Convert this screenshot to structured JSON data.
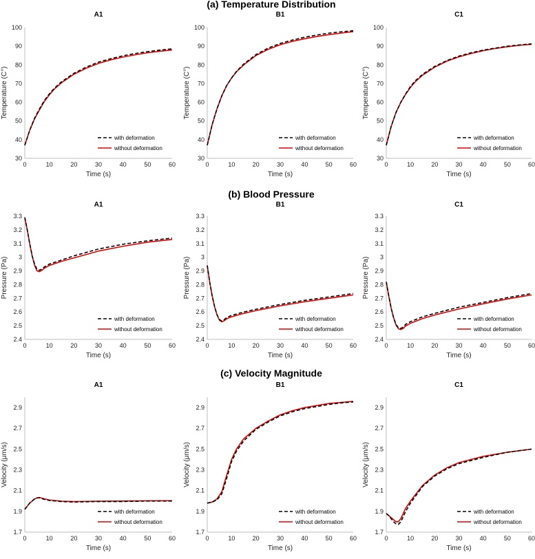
{
  "figure": {
    "sections": [
      {
        "title": "(a) Temperature Distribution"
      },
      {
        "title": "(b) Blood Pressure"
      },
      {
        "title": "(c) Velocity Magnitude"
      }
    ],
    "legend": {
      "dashed": "with deformation",
      "solid": "without deformation"
    },
    "colors": {
      "dashed": "#000000",
      "solid": "#e00000"
    }
  },
  "chart_data": [
    {
      "type": "line",
      "row": 0,
      "col": 0,
      "title": "A1",
      "xlabel": "Time (s)",
      "ylabel": "Temperature (C°)",
      "xlim": [
        0,
        60
      ],
      "ylim": [
        30,
        100
      ],
      "yticks": [
        30,
        40,
        50,
        60,
        70,
        80,
        90,
        100
      ],
      "ytick_labels": [
        "30",
        "40",
        "50",
        "60",
        "70",
        "80",
        "90",
        "100"
      ],
      "xticks": [
        0,
        10,
        20,
        30,
        40,
        50,
        60
      ],
      "series": [
        {
          "name": "with deformation",
          "style": "dashed",
          "x": [
            0,
            2,
            4,
            6,
            8,
            10,
            12,
            15,
            20,
            25,
            30,
            35,
            40,
            45,
            50,
            55,
            60
          ],
          "y": [
            37,
            45,
            51.5,
            56.5,
            61,
            64.5,
            67.5,
            71,
            75.5,
            78.8,
            81.5,
            83.3,
            84.9,
            86.1,
            87.1,
            87.9,
            88.6
          ]
        },
        {
          "name": "without deformation",
          "style": "solid",
          "x": [
            0,
            2,
            4,
            6,
            8,
            10,
            12,
            15,
            20,
            25,
            30,
            35,
            40,
            45,
            50,
            55,
            60
          ],
          "y": [
            37,
            45,
            51.2,
            56,
            60.5,
            64,
            67,
            70.5,
            75,
            78.2,
            80.8,
            82.7,
            84.2,
            85.4,
            86.5,
            87.3,
            88
          ]
        }
      ]
    },
    {
      "type": "line",
      "row": 0,
      "col": 1,
      "title": "B1",
      "xlabel": "Time (s)",
      "ylabel": "Temperature (C°)",
      "xlim": [
        0,
        60
      ],
      "ylim": [
        30,
        100
      ],
      "yticks": [
        30,
        40,
        50,
        60,
        70,
        80,
        90,
        100
      ],
      "ytick_labels": [
        "30",
        "40",
        "50",
        "60",
        "70",
        "80",
        "90",
        "100"
      ],
      "xticks": [
        0,
        10,
        20,
        30,
        40,
        50,
        60
      ],
      "series": [
        {
          "name": "with deformation",
          "style": "dashed",
          "x": [
            0,
            2,
            4,
            6,
            8,
            10,
            12,
            15,
            20,
            25,
            30,
            35,
            40,
            45,
            50,
            55,
            60
          ],
          "y": [
            37,
            48,
            56.5,
            63.5,
            69,
            73,
            76.5,
            80.5,
            85.5,
            89,
            91.5,
            93.3,
            94.8,
            96,
            97,
            97.7,
            98.3
          ]
        },
        {
          "name": "without deformation",
          "style": "solid",
          "x": [
            0,
            2,
            4,
            6,
            8,
            10,
            12,
            15,
            20,
            25,
            30,
            35,
            40,
            45,
            50,
            55,
            60
          ],
          "y": [
            37,
            48,
            56.5,
            63.5,
            69,
            73,
            76.3,
            80,
            85,
            88.3,
            90.8,
            92.6,
            94,
            95.2,
            96.2,
            97,
            97.8
          ]
        }
      ]
    },
    {
      "type": "line",
      "row": 0,
      "col": 2,
      "title": "C1",
      "xlabel": "Time (s)",
      "ylabel": "Temperature (C°)",
      "xlim": [
        0,
        60
      ],
      "ylim": [
        30,
        100
      ],
      "yticks": [
        30,
        40,
        50,
        60,
        70,
        80,
        90,
        100
      ],
      "ytick_labels": [
        "30",
        "40",
        "50",
        "60",
        "70",
        "80",
        "90",
        "100"
      ],
      "xticks": [
        0,
        10,
        20,
        30,
        40,
        50,
        60
      ],
      "series": [
        {
          "name": "with deformation",
          "style": "dashed",
          "x": [
            0,
            2,
            4,
            6,
            8,
            10,
            12,
            15,
            20,
            25,
            30,
            35,
            40,
            45,
            50,
            55,
            60
          ],
          "y": [
            37,
            47,
            54.5,
            60,
            64.5,
            68.5,
            71.5,
            75,
            79.2,
            82.3,
            84.7,
            86.5,
            87.9,
            89,
            90,
            90.7,
            91.3
          ]
        },
        {
          "name": "without deformation",
          "style": "solid",
          "x": [
            0,
            2,
            4,
            6,
            8,
            10,
            12,
            15,
            20,
            25,
            30,
            35,
            40,
            45,
            50,
            55,
            60
          ],
          "y": [
            37,
            47,
            54.5,
            60,
            64.3,
            68,
            71,
            74.5,
            78.8,
            82,
            84.3,
            86.1,
            87.6,
            88.8,
            89.7,
            90.5,
            91
          ]
        }
      ]
    },
    {
      "type": "line",
      "row": 1,
      "col": 0,
      "title": "A1",
      "xlabel": "Time (s)",
      "ylabel": "Pressure (Pa)",
      "xlim": [
        0,
        60
      ],
      "ylim": [
        2.4,
        3.3
      ],
      "yticks": [
        2.4,
        2.5,
        2.6,
        2.7,
        2.8,
        2.9,
        3.0,
        3.1,
        3.2,
        3.3
      ],
      "ytick_labels": [
        "2.4",
        "2.5",
        "2.6",
        "2.7",
        "2.8",
        "2.9",
        "3",
        "3.1",
        "3.2",
        "3.3"
      ],
      "xticks": [
        0,
        10,
        20,
        30,
        40,
        50,
        60
      ],
      "series": [
        {
          "name": "with deformation",
          "style": "dashed",
          "x": [
            0,
            1,
            2,
            3,
            4,
            5,
            6,
            7,
            8,
            10,
            15,
            20,
            30,
            40,
            50,
            60
          ],
          "y": [
            3.29,
            3.2,
            3.1,
            3.01,
            2.95,
            2.91,
            2.905,
            2.915,
            2.93,
            2.95,
            2.98,
            3.01,
            3.06,
            3.095,
            3.12,
            3.14
          ]
        },
        {
          "name": "without deformation",
          "style": "solid",
          "x": [
            0,
            1,
            2,
            3,
            4,
            5,
            6,
            7,
            8,
            10,
            15,
            20,
            30,
            40,
            50,
            60
          ],
          "y": [
            3.29,
            3.2,
            3.1,
            3.01,
            2.94,
            2.9,
            2.895,
            2.905,
            2.92,
            2.94,
            2.97,
            2.995,
            3.045,
            3.08,
            3.11,
            3.13
          ]
        }
      ]
    },
    {
      "type": "line",
      "row": 1,
      "col": 1,
      "title": "B1",
      "xlabel": "Time (s)",
      "ylabel": "Pressure (Pa)",
      "xlim": [
        0,
        60
      ],
      "ylim": [
        2.4,
        3.3
      ],
      "yticks": [
        2.4,
        2.5,
        2.6,
        2.7,
        2.8,
        2.9,
        3.0,
        3.1,
        3.2,
        3.3
      ],
      "ytick_labels": [
        "2.4",
        "2.5",
        "2.6",
        "2.7",
        "2.8",
        "2.9",
        "3",
        "3.1",
        "3.2",
        "3.3"
      ],
      "xticks": [
        0,
        10,
        20,
        30,
        40,
        50,
        60
      ],
      "series": [
        {
          "name": "with deformation",
          "style": "dashed",
          "x": [
            0,
            1,
            2,
            3,
            4,
            5,
            6,
            7,
            8,
            10,
            15,
            20,
            30,
            40,
            50,
            60
          ],
          "y": [
            2.94,
            2.82,
            2.72,
            2.64,
            2.58,
            2.545,
            2.535,
            2.545,
            2.56,
            2.575,
            2.6,
            2.62,
            2.655,
            2.685,
            2.71,
            2.735
          ]
        },
        {
          "name": "without deformation",
          "style": "solid",
          "x": [
            0,
            1,
            2,
            3,
            4,
            5,
            6,
            7,
            8,
            10,
            15,
            20,
            30,
            40,
            50,
            60
          ],
          "y": [
            2.94,
            2.82,
            2.72,
            2.64,
            2.58,
            2.54,
            2.528,
            2.537,
            2.55,
            2.565,
            2.59,
            2.61,
            2.645,
            2.675,
            2.7,
            2.725
          ]
        }
      ]
    },
    {
      "type": "line",
      "row": 1,
      "col": 2,
      "title": "C1",
      "xlabel": "Time (s)",
      "ylabel": "Pressure (Pa)",
      "xlim": [
        0,
        60
      ],
      "ylim": [
        2.4,
        3.3
      ],
      "yticks": [
        2.4,
        2.5,
        2.6,
        2.7,
        2.8,
        2.9,
        3.0,
        3.1,
        3.2,
        3.3
      ],
      "ytick_labels": [
        "2.4",
        "2.5",
        "2.6",
        "2.7",
        "2.8",
        "2.9",
        "3",
        "3.1",
        "3.2",
        "3.3"
      ],
      "xticks": [
        0,
        10,
        20,
        30,
        40,
        50,
        60
      ],
      "series": [
        {
          "name": "with deformation",
          "style": "dashed",
          "x": [
            0,
            1,
            2,
            3,
            4,
            5,
            6,
            7,
            8,
            10,
            15,
            20,
            30,
            40,
            50,
            60
          ],
          "y": [
            2.82,
            2.72,
            2.63,
            2.56,
            2.51,
            2.485,
            2.48,
            2.49,
            2.51,
            2.53,
            2.565,
            2.59,
            2.635,
            2.67,
            2.705,
            2.735
          ]
        },
        {
          "name": "without deformation",
          "style": "solid",
          "x": [
            0,
            1,
            2,
            3,
            4,
            5,
            6,
            7,
            8,
            10,
            15,
            20,
            30,
            40,
            50,
            60
          ],
          "y": [
            2.82,
            2.72,
            2.63,
            2.56,
            2.505,
            2.478,
            2.472,
            2.48,
            2.498,
            2.518,
            2.552,
            2.578,
            2.622,
            2.66,
            2.695,
            2.725
          ]
        }
      ]
    },
    {
      "type": "line",
      "row": 2,
      "col": 0,
      "title": "A1",
      "xlabel": "Time (s)",
      "ylabel": "Velocity (μm/s)",
      "xlim": [
        0,
        60
      ],
      "ylim": [
        1.7,
        3.0
      ],
      "yticks": [
        1.7,
        1.9,
        2.1,
        2.3,
        2.5,
        2.7,
        2.9
      ],
      "ytick_labels": [
        "1.7",
        "1.9",
        "2.1",
        "2.3",
        "2.5",
        "2.7",
        "2.9"
      ],
      "xticks": [
        0,
        10,
        20,
        30,
        40,
        50,
        60
      ],
      "series": [
        {
          "name": "with deformation",
          "style": "dashed",
          "x": [
            0,
            1,
            2,
            3,
            4,
            5,
            6,
            8,
            10,
            15,
            20,
            30,
            40,
            50,
            60
          ],
          "y": [
            1.92,
            1.95,
            1.98,
            2.0,
            2.02,
            2.03,
            2.03,
            2.015,
            2.005,
            1.995,
            1.99,
            1.995,
            1.995,
            2.0,
            2.0
          ]
        },
        {
          "name": "without deformation",
          "style": "solid",
          "x": [
            0,
            1,
            2,
            3,
            4,
            5,
            6,
            8,
            10,
            15,
            20,
            30,
            40,
            50,
            60
          ],
          "y": [
            1.92,
            1.95,
            1.98,
            2.0,
            2.02,
            2.03,
            2.035,
            2.02,
            2.01,
            1.998,
            1.995,
            1.998,
            2.0,
            2.002,
            2.003
          ]
        }
      ]
    },
    {
      "type": "line",
      "row": 2,
      "col": 1,
      "title": "B1",
      "xlabel": "Time (s)",
      "ylabel": "Velocity (μm/s)",
      "xlim": [
        0,
        60
      ],
      "ylim": [
        1.7,
        3.0
      ],
      "yticks": [
        1.7,
        1.9,
        2.1,
        2.3,
        2.5,
        2.7,
        2.9
      ],
      "ytick_labels": [
        "1.7",
        "1.9",
        "2.1",
        "2.3",
        "2.5",
        "2.7",
        "2.9"
      ],
      "xticks": [
        0,
        10,
        20,
        30,
        40,
        50,
        60
      ],
      "series": [
        {
          "name": "with deformation",
          "style": "dashed",
          "x": [
            0,
            2,
            4,
            6,
            8,
            10,
            12,
            15,
            20,
            25,
            30,
            35,
            40,
            45,
            50,
            55,
            60
          ],
          "y": [
            1.98,
            1.99,
            2.01,
            2.07,
            2.22,
            2.38,
            2.48,
            2.58,
            2.69,
            2.76,
            2.82,
            2.86,
            2.89,
            2.91,
            2.93,
            2.945,
            2.955
          ]
        },
        {
          "name": "without deformation",
          "style": "solid",
          "x": [
            0,
            2,
            4,
            6,
            8,
            10,
            12,
            15,
            20,
            25,
            30,
            35,
            40,
            45,
            50,
            55,
            60
          ],
          "y": [
            1.98,
            1.99,
            2.02,
            2.09,
            2.25,
            2.4,
            2.5,
            2.6,
            2.7,
            2.77,
            2.83,
            2.87,
            2.9,
            2.92,
            2.94,
            2.95,
            2.96
          ]
        }
      ]
    },
    {
      "type": "line",
      "row": 2,
      "col": 2,
      "title": "C1",
      "xlabel": "Time (s)",
      "ylabel": "Velocity (μm/s)",
      "xlim": [
        0,
        60
      ],
      "ylim": [
        1.7,
        3.0
      ],
      "yticks": [
        1.7,
        1.9,
        2.1,
        2.3,
        2.5,
        2.7,
        2.9
      ],
      "ytick_labels": [
        "1.7",
        "1.9",
        "2.1",
        "2.3",
        "2.5",
        "2.7",
        "2.9"
      ],
      "xticks": [
        0,
        10,
        20,
        30,
        40,
        50,
        60
      ],
      "series": [
        {
          "name": "with deformation",
          "style": "dashed",
          "x": [
            0,
            1,
            2,
            3,
            4,
            5,
            6,
            7,
            8,
            10,
            15,
            20,
            25,
            30,
            40,
            50,
            60
          ],
          "y": [
            1.88,
            1.86,
            1.83,
            1.8,
            1.78,
            1.775,
            1.8,
            1.85,
            1.9,
            1.98,
            2.14,
            2.24,
            2.31,
            2.36,
            2.42,
            2.47,
            2.5
          ]
        },
        {
          "name": "without deformation",
          "style": "solid",
          "x": [
            0,
            1,
            2,
            3,
            4,
            5,
            6,
            7,
            8,
            10,
            15,
            20,
            25,
            30,
            40,
            50,
            60
          ],
          "y": [
            1.88,
            1.86,
            1.84,
            1.82,
            1.8,
            1.8,
            1.83,
            1.88,
            1.93,
            2.0,
            2.15,
            2.25,
            2.32,
            2.37,
            2.43,
            2.47,
            2.5
          ]
        }
      ]
    }
  ]
}
